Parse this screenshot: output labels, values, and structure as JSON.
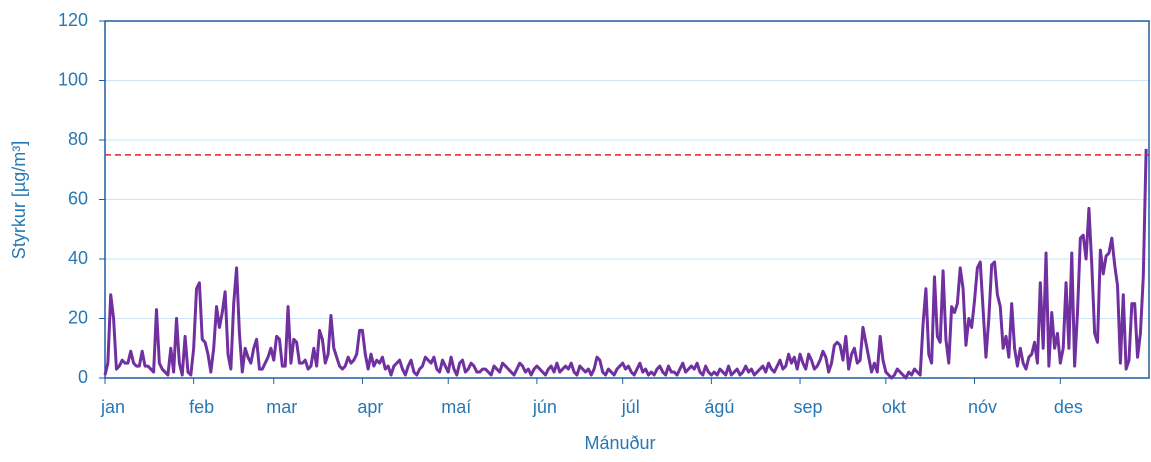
{
  "chart_data": {
    "type": "line",
    "xlabel": "Mánuður",
    "ylabel": "Styrkur [µg/m³]",
    "xlim": [
      0,
      365
    ],
    "xticks": [
      {
        "value": 0,
        "label": "jan"
      },
      {
        "value": 31,
        "label": "feb"
      },
      {
        "value": 59,
        "label": "mar"
      },
      {
        "value": 90,
        "label": "apr"
      },
      {
        "value": 120,
        "label": "maí"
      },
      {
        "value": 151,
        "label": "jún"
      },
      {
        "value": 181,
        "label": "júl"
      },
      {
        "value": 212,
        "label": "ágú"
      },
      {
        "value": 243,
        "label": "sep"
      },
      {
        "value": 273,
        "label": "okt"
      },
      {
        "value": 304,
        "label": "nóv"
      },
      {
        "value": 334,
        "label": "des"
      }
    ],
    "ylim": [
      0,
      120
    ],
    "yticks": [
      0,
      20,
      40,
      60,
      80,
      100,
      120
    ],
    "grid": true,
    "reference_line": {
      "value": 75,
      "color": "#d9262b"
    },
    "color": "#7030a0",
    "values": [
      1,
      5,
      28,
      20,
      3,
      4,
      6,
      5,
      5,
      9,
      5,
      4,
      4,
      9,
      4,
      4,
      3,
      2,
      23,
      5,
      3,
      2,
      1,
      10,
      2,
      20,
      5,
      1,
      14,
      2,
      1,
      10,
      30,
      32,
      13,
      12,
      8,
      2,
      10,
      24,
      17,
      22,
      29,
      8,
      3,
      25,
      37,
      15,
      2,
      10,
      7,
      5,
      10,
      13,
      3,
      3,
      5,
      7,
      10,
      6,
      14,
      13,
      4,
      4,
      24,
      5,
      13,
      12,
      5,
      5,
      6,
      3,
      4,
      10,
      4,
      16,
      13,
      5,
      8,
      21,
      10,
      7,
      4,
      3,
      4,
      7,
      5,
      6,
      8,
      16,
      16,
      8,
      3,
      8,
      4,
      6,
      5,
      7,
      3,
      4,
      1,
      4,
      5,
      6,
      3,
      1,
      4,
      6,
      2,
      1,
      3,
      4,
      7,
      6,
      5,
      7,
      3,
      2,
      6,
      4,
      2,
      7,
      3,
      1,
      5,
      6,
      2,
      3,
      5,
      4,
      2,
      2,
      3,
      3,
      2,
      1,
      4,
      3,
      2,
      5,
      4,
      3,
      2,
      1,
      3,
      5,
      4,
      2,
      3,
      1,
      3,
      4,
      3,
      2,
      1,
      3,
      4,
      2,
      5,
      2,
      3,
      4,
      3,
      5,
      2,
      1,
      4,
      3,
      2,
      3,
      1,
      3,
      7,
      6,
      2,
      1,
      3,
      2,
      1,
      3,
      4,
      5,
      3,
      4,
      2,
      1,
      3,
      5,
      2,
      3,
      1,
      2,
      1,
      3,
      4,
      2,
      1,
      4,
      2,
      2,
      1,
      3,
      5,
      2,
      3,
      4,
      3,
      5,
      2,
      1,
      4,
      2,
      1,
      2,
      1,
      3,
      2,
      1,
      4,
      1,
      2,
      3,
      1,
      2,
      4,
      2,
      3,
      1,
      2,
      3,
      4,
      2,
      5,
      3,
      2,
      4,
      6,
      3,
      4,
      8,
      5,
      7,
      3,
      8,
      5,
      3,
      8,
      6,
      3,
      4,
      6,
      9,
      7,
      2,
      5,
      11,
      12,
      11,
      6,
      14,
      3,
      8,
      10,
      5,
      6,
      17,
      12,
      7,
      2,
      5,
      2,
      14,
      6,
      2,
      1,
      0,
      1,
      3,
      2,
      1,
      0,
      2,
      1,
      3,
      2,
      1,
      18,
      30,
      8,
      5,
      34,
      14,
      12,
      36,
      13,
      5,
      24,
      22,
      25,
      37,
      30,
      11,
      20,
      17,
      26,
      37,
      39,
      23,
      7,
      20,
      38,
      39,
      28,
      24,
      10,
      14,
      7,
      25,
      10,
      4,
      10,
      5,
      3,
      7,
      8,
      12,
      5,
      32,
      10,
      42,
      4,
      22,
      10,
      15,
      5,
      10,
      32,
      10,
      42,
      4,
      22,
      47,
      48,
      40,
      57,
      38,
      15,
      12,
      43,
      35,
      41,
      42,
      47,
      38,
      31,
      5,
      28,
      3,
      6,
      25,
      25,
      7,
      15,
      34,
      77
    ]
  }
}
